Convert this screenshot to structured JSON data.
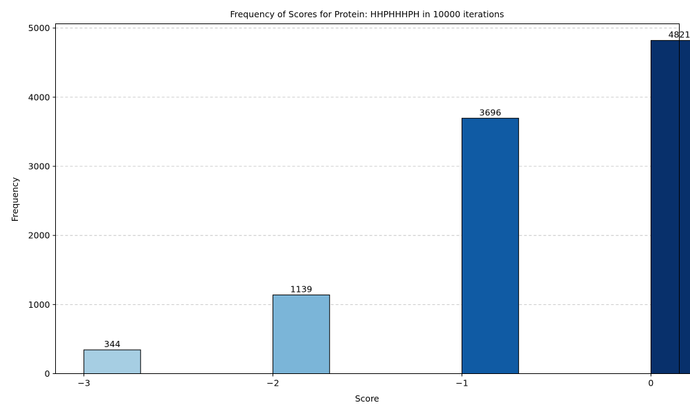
{
  "chart_data": {
    "type": "bar",
    "title": "Frequency of Scores for Protein: HHPHHHPH in 10000 iterations",
    "xlabel": "Score",
    "ylabel": "Frequency",
    "x": [
      -3,
      -2,
      -1,
      0
    ],
    "values": [
      344,
      1139,
      3696,
      4821
    ],
    "bar_labels": [
      "344",
      "1139",
      "3696",
      "4821"
    ],
    "bar_colors": [
      "#a6cee3",
      "#7bb5d8",
      "#105ba4",
      "#08306b"
    ],
    "xticks": [
      -3,
      -2,
      -1,
      0
    ],
    "xtick_labels": [
      "−3",
      "−2",
      "−1",
      "0"
    ],
    "yticks": [
      0,
      1000,
      2000,
      3000,
      4000,
      5000
    ],
    "ytick_labels": [
      "0",
      "1000",
      "2000",
      "3000",
      "4000",
      "5000"
    ],
    "xlim": [
      -3.15,
      0.15
    ],
    "ylim": [
      0,
      5062
    ],
    "bar_width": 0.3,
    "grid": "y-dashed"
  }
}
